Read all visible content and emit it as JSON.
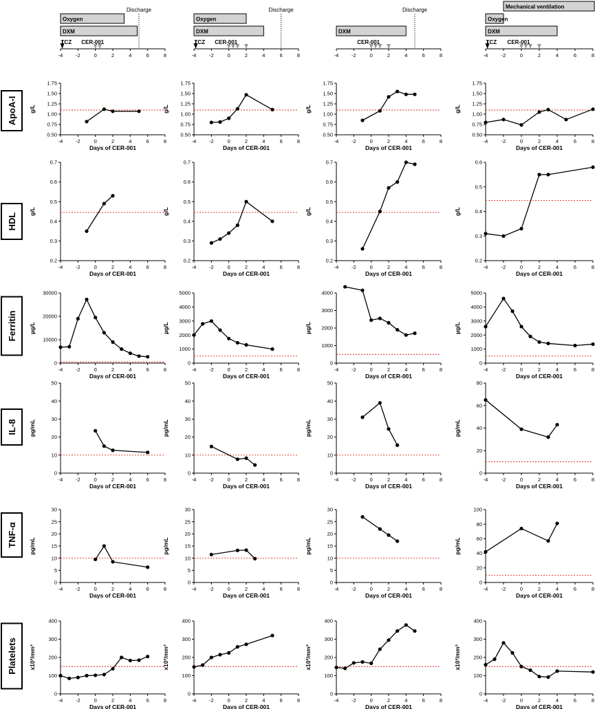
{
  "x_axis_label": "Days of CER-001",
  "x_ticks": [
    "-4",
    "-2",
    "0",
    "2",
    "4",
    "6",
    "8"
  ],
  "row_labels": [
    "ApoA-I",
    "HDL",
    "Ferritin",
    "IL-8",
    "TNF-α",
    "Platelets"
  ],
  "reference_color": "#e0241b",
  "timelines": [
    {
      "bars": [
        {
          "label": "Oxygen",
          "start": -4,
          "end": 3.3
        },
        {
          "label": "DXM",
          "start": -4,
          "end": 4.8
        }
      ],
      "discharge": {
        "label": "Discharge",
        "day": 5
      },
      "tcz": {
        "label": "TCZ",
        "day": -3.8
      },
      "cer_label": "CER-001",
      "cer_days": [
        0,
        0.5
      ]
    },
    {
      "bars": [
        {
          "label": "Oxygen",
          "start": -4,
          "end": 2
        },
        {
          "label": "DXM",
          "start": -4,
          "end": 4
        }
      ],
      "discharge": {
        "label": "Discharge",
        "day": 6
      },
      "tcz": {
        "label": "TCZ",
        "day": -3.8
      },
      "cer_label": "CER-001",
      "cer_days": [
        0,
        0.5,
        1,
        2
      ]
    },
    {
      "bars": [
        {
          "label": "DXM",
          "start": -4,
          "end": 4
        }
      ],
      "discharge": {
        "label": "Discharge",
        "day": 5
      },
      "tcz": null,
      "cer_label": "CER-001",
      "cer_days": [
        0,
        0.5,
        1,
        2
      ]
    },
    {
      "bars": [
        {
          "label": "Mechanical ventilation",
          "start": -2,
          "end": 8.2
        },
        {
          "label": "Oxygen",
          "start": -4,
          "end": -2
        },
        {
          "label": "DXM",
          "start": -4,
          "end": 4
        }
      ],
      "discharge": null,
      "tcz": {
        "label": "TCZ",
        "day": -3.8
      },
      "cer_label": "CER-001",
      "cer_days": [
        0,
        0.5,
        1,
        2
      ]
    }
  ],
  "chart_data": [
    {
      "type": "line",
      "row": "ApoA-I",
      "patient": 1,
      "ylabel": "g/L",
      "ylim": [
        0.5,
        1.75
      ],
      "yticks": [
        "0.50",
        "0.75",
        "1.00",
        "1.25",
        "1.50",
        "1.75"
      ],
      "reference_line": 1.1,
      "x": [
        -1,
        1,
        2,
        5
      ],
      "y": [
        0.82,
        1.12,
        1.07,
        1.07
      ]
    },
    {
      "type": "line",
      "row": "ApoA-I",
      "patient": 2,
      "ylabel": "g/L",
      "ylim": [
        0.5,
        1.75
      ],
      "yticks": [
        "0.50",
        "0.75",
        "1.00",
        "1.25",
        "1.50",
        "1.75"
      ],
      "reference_line": 1.1,
      "x": [
        -2,
        -1,
        0,
        1,
        2,
        5
      ],
      "y": [
        0.8,
        0.81,
        0.9,
        1.13,
        1.47,
        1.11
      ]
    },
    {
      "type": "line",
      "row": "ApoA-I",
      "patient": 3,
      "ylabel": "g/L",
      "ylim": [
        0.5,
        1.75
      ],
      "yticks": [
        "0.50",
        "0.75",
        "1.00",
        "1.25",
        "1.50",
        "1.75"
      ],
      "reference_line": 1.1,
      "x": [
        -1,
        1,
        2,
        3,
        4,
        5
      ],
      "y": [
        0.85,
        1.08,
        1.42,
        1.55,
        1.48,
        1.48
      ]
    },
    {
      "type": "line",
      "row": "ApoA-I",
      "patient": 4,
      "ylabel": "g/L",
      "ylim": [
        0.5,
        1.75
      ],
      "yticks": [
        "0.50",
        "0.75",
        "1.00",
        "1.25",
        "1.50",
        "1.75"
      ],
      "reference_line": 1.1,
      "x": [
        -4,
        -2,
        0,
        2,
        3,
        5,
        8
      ],
      "y": [
        0.8,
        0.87,
        0.74,
        1.05,
        1.11,
        0.87,
        1.12
      ]
    },
    {
      "type": "line",
      "row": "HDL",
      "patient": 1,
      "ylabel": "g/L",
      "ylim": [
        0.2,
        0.7
      ],
      "yticks": [
        "0.2",
        "0.3",
        "0.4",
        "0.5",
        "0.6",
        "0.7"
      ],
      "reference_line": 0.445,
      "x": [
        -1,
        1,
        2
      ],
      "y": [
        0.35,
        0.49,
        0.53
      ]
    },
    {
      "type": "line",
      "row": "HDL",
      "patient": 2,
      "ylabel": "g/L",
      "ylim": [
        0.2,
        0.7
      ],
      "yticks": [
        "0.2",
        "0.3",
        "0.4",
        "0.5",
        "0.6",
        "0.7"
      ],
      "reference_line": 0.445,
      "x": [
        -2,
        -1,
        0,
        1,
        2,
        5
      ],
      "y": [
        0.29,
        0.31,
        0.34,
        0.38,
        0.5,
        0.4
      ]
    },
    {
      "type": "line",
      "row": "HDL",
      "patient": 3,
      "ylabel": "g/L",
      "ylim": [
        0.2,
        0.7
      ],
      "yticks": [
        "0.2",
        "0.3",
        "0.4",
        "0.5",
        "0.6",
        "0.7"
      ],
      "reference_line": 0.445,
      "x": [
        -1,
        1,
        2,
        3,
        4,
        5
      ],
      "y": [
        0.26,
        0.45,
        0.57,
        0.6,
        0.7,
        0.69
      ]
    },
    {
      "type": "line",
      "row": "HDL",
      "patient": 4,
      "ylabel": "g/L",
      "ylim": [
        0.2,
        0.6
      ],
      "yticks": [
        "0.2",
        "0.3",
        "0.4",
        "0.5",
        "0.6"
      ],
      "reference_line": 0.445,
      "x": [
        -4,
        -2,
        0,
        2,
        3,
        8
      ],
      "y": [
        0.31,
        0.3,
        0.33,
        0.55,
        0.55,
        0.58
      ]
    },
    {
      "type": "line",
      "row": "Ferritin",
      "patient": 1,
      "ylabel": "µg/L",
      "ylim": [
        0,
        30000
      ],
      "yticks": [
        "0",
        "10000",
        "20000",
        "30000"
      ],
      "reference_line": 500,
      "x": [
        -4,
        -3,
        -2,
        -1,
        0,
        1,
        2,
        3,
        4,
        5,
        6
      ],
      "y": [
        6800,
        7000,
        19000,
        27200,
        19500,
        13000,
        9000,
        6000,
        4200,
        3000,
        2700
      ]
    },
    {
      "type": "line",
      "row": "Ferritin",
      "patient": 2,
      "ylabel": "µg/L",
      "ylim": [
        0,
        5000
      ],
      "yticks": [
        "0",
        "1000",
        "2000",
        "3000",
        "4000",
        "5000"
      ],
      "reference_line": 500,
      "x": [
        -4,
        -3,
        -2,
        -1,
        0,
        1,
        2,
        5
      ],
      "y": [
        2000,
        2800,
        3000,
        2350,
        1750,
        1450,
        1300,
        1000
      ]
    },
    {
      "type": "line",
      "row": "Ferritin",
      "patient": 3,
      "ylabel": "µg/L",
      "ylim": [
        0,
        4000
      ],
      "yticks": [
        "0",
        "1000",
        "2000",
        "3000",
        "4000"
      ],
      "reference_line": 500,
      "x": [
        -3,
        -1,
        0,
        1,
        2,
        3,
        4,
        5
      ],
      "y": [
        4350,
        4150,
        2450,
        2550,
        2300,
        1900,
        1600,
        1700
      ]
    },
    {
      "type": "line",
      "row": "Ferritin",
      "patient": 4,
      "ylabel": "µg/L",
      "ylim": [
        0,
        5000
      ],
      "yticks": [
        "0",
        "1000",
        "2000",
        "3000",
        "4000",
        "5000"
      ],
      "reference_line": 500,
      "x": [
        -4,
        -2,
        -1,
        0,
        1,
        2,
        3,
        6,
        8
      ],
      "y": [
        2600,
        4600,
        3700,
        2600,
        1900,
        1500,
        1400,
        1250,
        1350
      ]
    },
    {
      "type": "line",
      "row": "IL-8",
      "patient": 1,
      "ylabel": "pg/mL",
      "ylim": [
        0,
        50
      ],
      "yticks": [
        "0",
        "10",
        "20",
        "30",
        "40",
        "50"
      ],
      "reference_line": 10,
      "x": [
        0,
        1,
        2,
        6
      ],
      "y": [
        23.5,
        15,
        12.7,
        11.5
      ]
    },
    {
      "type": "line",
      "row": "IL-8",
      "patient": 2,
      "ylabel": "pg/mL",
      "ylim": [
        0,
        50
      ],
      "yticks": [
        "0",
        "10",
        "20",
        "30",
        "40",
        "50"
      ],
      "reference_line": 10,
      "x": [
        -2,
        1,
        2,
        3
      ],
      "y": [
        14.8,
        7.7,
        8.3,
        4.5
      ]
    },
    {
      "type": "line",
      "row": "IL-8",
      "patient": 3,
      "ylabel": "pg/mL",
      "ylim": [
        0,
        50
      ],
      "yticks": [
        "0",
        "10",
        "20",
        "30",
        "40",
        "50"
      ],
      "reference_line": 10,
      "x": [
        -1,
        1,
        2,
        3
      ],
      "y": [
        31,
        39,
        24.5,
        15.5
      ]
    },
    {
      "type": "line",
      "row": "IL-8",
      "patient": 4,
      "ylabel": "pg/mL",
      "ylim": [
        0,
        80
      ],
      "yticks": [
        "0",
        "20",
        "40",
        "60",
        "80"
      ],
      "reference_line": 10,
      "x": [
        -4,
        0,
        3,
        4
      ],
      "y": [
        65,
        39,
        32,
        43
      ]
    },
    {
      "type": "line",
      "row": "TNF-α",
      "patient": 1,
      "ylabel": "pg/mL",
      "ylim": [
        0,
        30
      ],
      "yticks": [
        "0",
        "5",
        "10",
        "15",
        "20",
        "25",
        "30"
      ],
      "reference_line": 10,
      "x": [
        0,
        1,
        2,
        6
      ],
      "y": [
        9.5,
        15,
        8.5,
        6.3
      ]
    },
    {
      "type": "line",
      "row": "TNF-α",
      "patient": 2,
      "ylabel": "pg/mL",
      "ylim": [
        0,
        30
      ],
      "yticks": [
        "0",
        "5",
        "10",
        "15",
        "20",
        "25",
        "30"
      ],
      "reference_line": 10,
      "x": [
        -2,
        1,
        2,
        3
      ],
      "y": [
        11.5,
        13.2,
        13.3,
        9.8
      ]
    },
    {
      "type": "line",
      "row": "TNF-α",
      "patient": 3,
      "ylabel": "pg/mL",
      "ylim": [
        0,
        30
      ],
      "yticks": [
        "0",
        "5",
        "10",
        "15",
        "20",
        "25",
        "30"
      ],
      "reference_line": 10,
      "x": [
        -1,
        1,
        2,
        3
      ],
      "y": [
        27,
        22,
        19.5,
        17
      ]
    },
    {
      "type": "line",
      "row": "TNF-α",
      "patient": 4,
      "ylabel": "pg/mL",
      "ylim": [
        0,
        100
      ],
      "yticks": [
        "0",
        "20",
        "40",
        "60",
        "80",
        "100"
      ],
      "reference_line": 10,
      "x": [
        -4,
        0,
        3,
        4
      ],
      "y": [
        42,
        74,
        57,
        81
      ]
    },
    {
      "type": "line",
      "row": "Platelets",
      "patient": 1,
      "ylabel": "x10³/mm³",
      "ylim": [
        0,
        400
      ],
      "yticks": [
        "0",
        "100",
        "200",
        "300",
        "400"
      ],
      "reference_line": 150,
      "x": [
        -4,
        -3,
        -2,
        -1,
        0,
        1,
        2,
        3,
        4,
        5,
        6
      ],
      "y": [
        100,
        85,
        90,
        100,
        102,
        106,
        138,
        200,
        183,
        185,
        205
      ]
    },
    {
      "type": "line",
      "row": "Platelets",
      "patient": 2,
      "ylabel": "x10³/mm³",
      "ylim": [
        0,
        400
      ],
      "yticks": [
        "0",
        "100",
        "200",
        "300",
        "400"
      ],
      "reference_line": 150,
      "x": [
        -4,
        -3,
        -2,
        -1,
        0,
        1,
        2,
        5
      ],
      "y": [
        148,
        158,
        200,
        215,
        225,
        258,
        272,
        320
      ]
    },
    {
      "type": "line",
      "row": "Platelets",
      "patient": 3,
      "ylabel": "x10³/mm³",
      "ylim": [
        0,
        400
      ],
      "yticks": [
        "0",
        "100",
        "200",
        "300",
        "400"
      ],
      "reference_line": 150,
      "x": [
        -4,
        -3,
        -2,
        -1,
        0,
        1,
        2,
        3,
        4,
        5
      ],
      "y": [
        145,
        140,
        170,
        175,
        168,
        245,
        295,
        345,
        378,
        345
      ]
    },
    {
      "type": "line",
      "row": "Platelets",
      "patient": 4,
      "ylabel": "x10³/mm³",
      "ylim": [
        0,
        400
      ],
      "yticks": [
        "0",
        "100",
        "200",
        "300",
        "400"
      ],
      "reference_line": 150,
      "x": [
        -4,
        -3,
        -2,
        -1,
        0,
        1,
        2,
        3,
        4,
        8
      ],
      "y": [
        160,
        190,
        280,
        225,
        150,
        130,
        95,
        92,
        125,
        120
      ]
    }
  ]
}
